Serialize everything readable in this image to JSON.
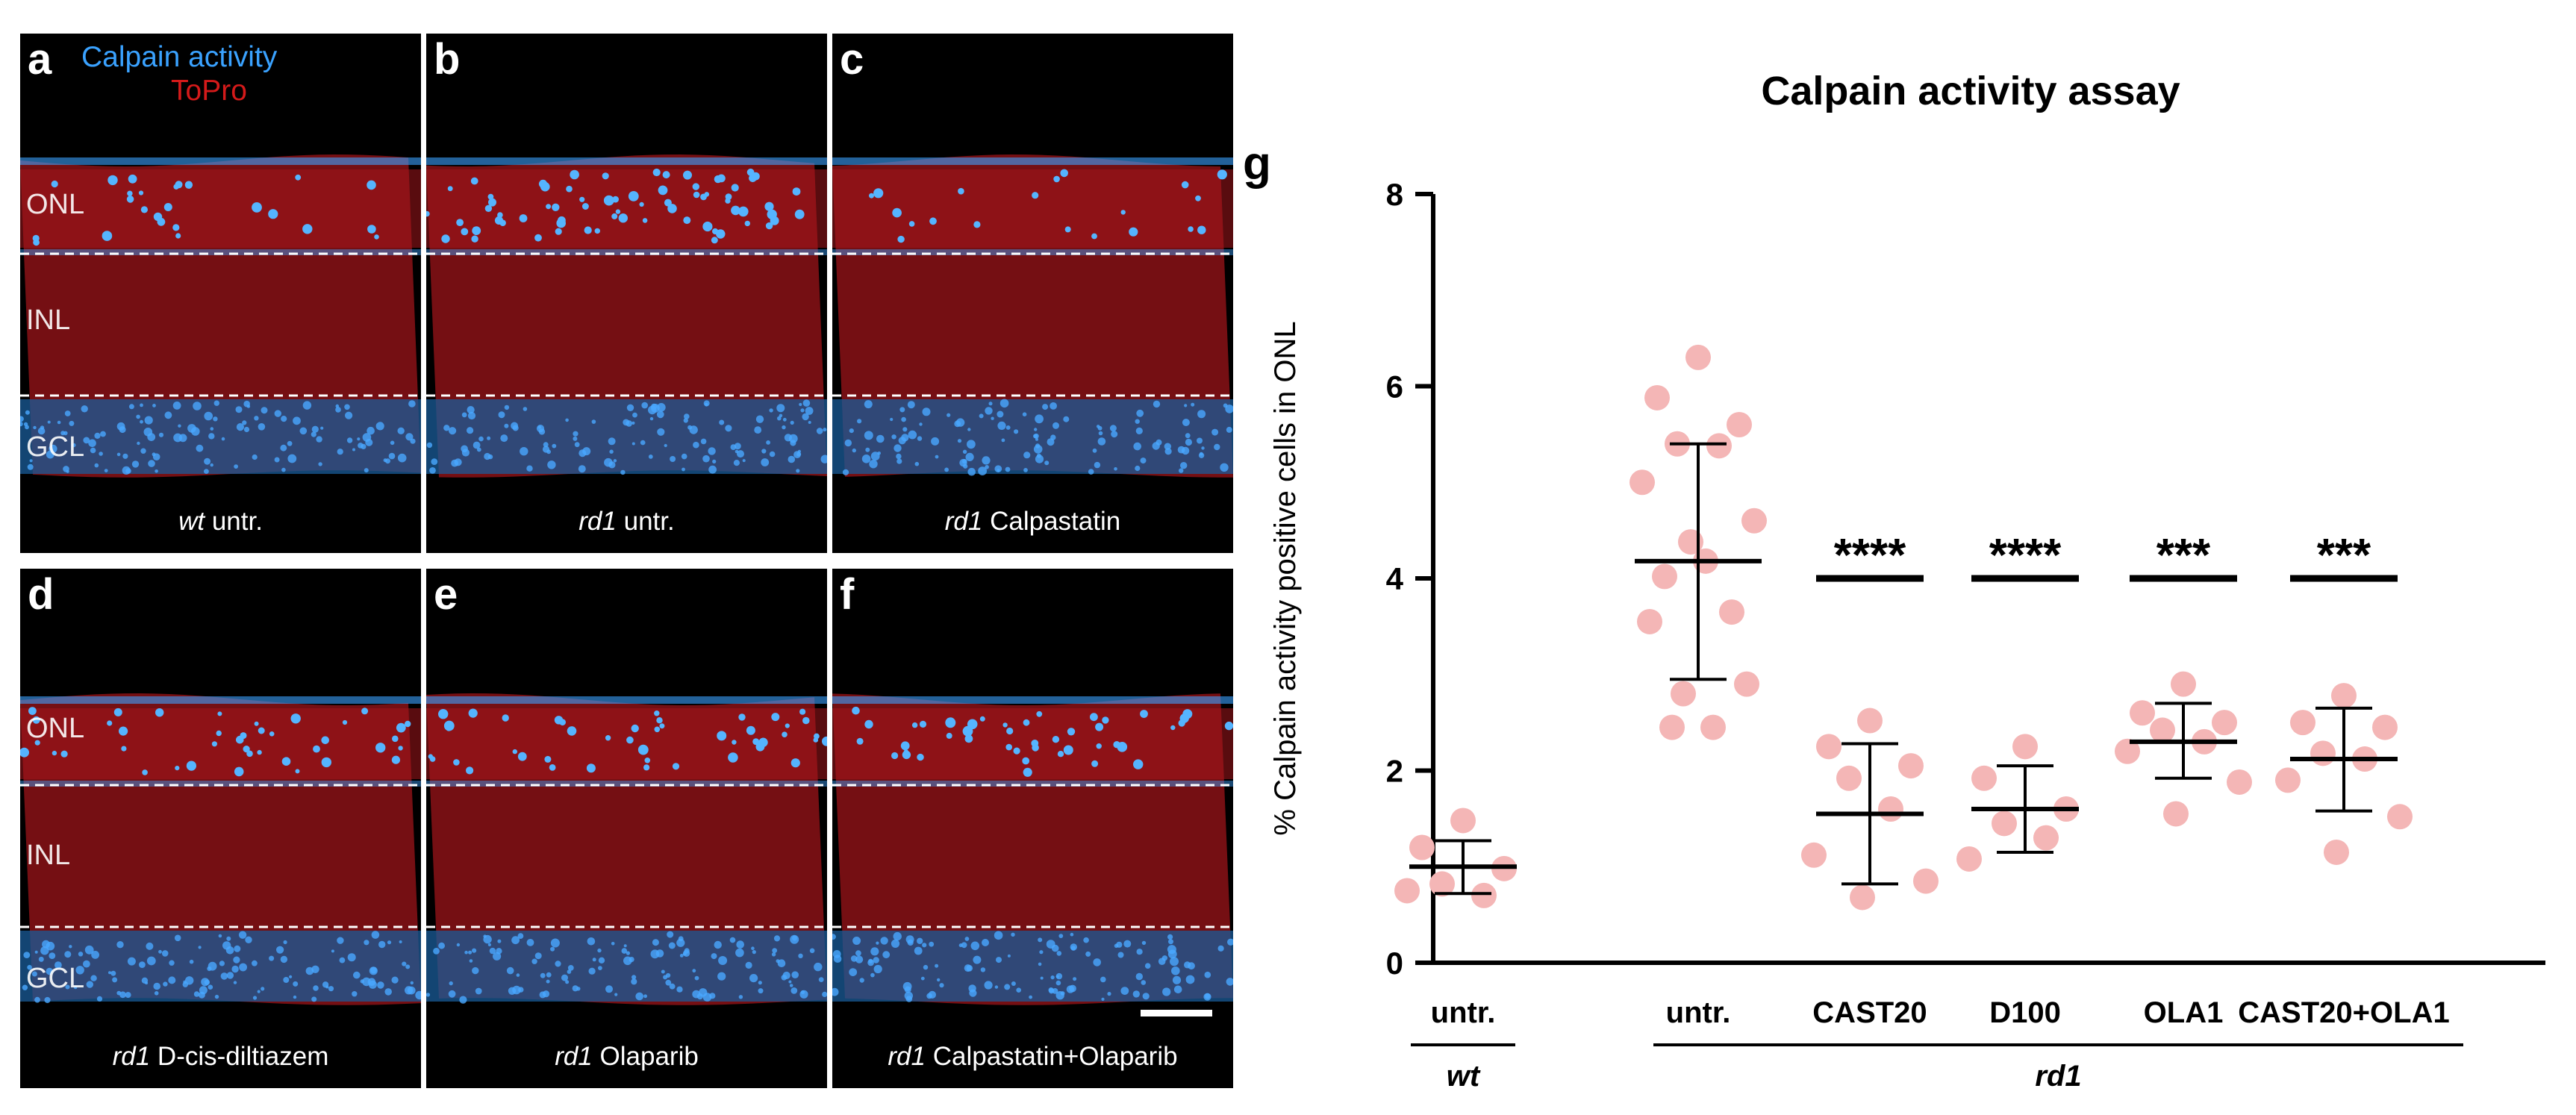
{
  "panels": [
    {
      "letter": "a",
      "genotype": "wt",
      "treatment": "untr."
    },
    {
      "letter": "b",
      "genotype": "rd1",
      "treatment": "untr."
    },
    {
      "letter": "c",
      "genotype": "rd1",
      "treatment": "Calpastatin"
    },
    {
      "letter": "d",
      "genotype": "rd1",
      "treatment": "D-cis-diltiazem"
    },
    {
      "letter": "e",
      "genotype": "rd1",
      "treatment": "Olaparib"
    },
    {
      "letter": "f",
      "genotype": "rd1",
      "treatment": "Calpastatin+Olaparib"
    }
  ],
  "legend": {
    "stain1": "Calpain activity",
    "stain2": "ToPro"
  },
  "layers": {
    "onl": "ONL",
    "inl": "INL",
    "gcl": "GCL"
  },
  "colors": {
    "calpain": "#3aa2ff",
    "topro": "#d41a1a",
    "dots": "#f4b6b6",
    "background": "#000000"
  },
  "chart_data": {
    "panel_letter": "g",
    "type": "scatter",
    "title": "Calpain activity assay",
    "ylabel": "% Calpain activity positive cells in ONL",
    "xlabel": "",
    "ylim": [
      0,
      8
    ],
    "yticks": [
      0,
      2,
      4,
      6,
      8
    ],
    "grid": false,
    "groups": [
      {
        "label": "untr.",
        "points": [
          1.48,
          1.2,
          0.98,
          0.82,
          0.7,
          0.75
        ],
        "mean": 1.0,
        "sd_low": 0.72,
        "sd_high": 1.27,
        "sig": ""
      },
      {
        "label": "untr.",
        "points": [
          6.3,
          5.88,
          5.6,
          5.4,
          5.38,
          5.0,
          4.6,
          4.38,
          4.18,
          4.02,
          3.65,
          3.55,
          2.9,
          2.8,
          2.45,
          2.45
        ],
        "mean": 4.18,
        "sd_low": 2.95,
        "sd_high": 5.4,
        "sig": ""
      },
      {
        "label": "CAST20",
        "points": [
          2.52,
          2.25,
          2.05,
          1.92,
          1.6,
          1.12,
          0.85,
          0.68
        ],
        "mean": 1.55,
        "sd_low": 0.82,
        "sd_high": 2.28,
        "sig": "****"
      },
      {
        "label": "D100",
        "points": [
          2.25,
          1.92,
          1.6,
          1.45,
          1.3,
          1.08
        ],
        "mean": 1.6,
        "sd_low": 1.15,
        "sd_high": 2.05,
        "sig": "****"
      },
      {
        "label": "OLA1",
        "points": [
          2.9,
          2.6,
          2.5,
          2.42,
          2.3,
          2.2,
          1.88,
          1.55
        ],
        "mean": 2.3,
        "sd_low": 1.92,
        "sd_high": 2.7,
        "sig": "***"
      },
      {
        "label": "CAST20+OLA1",
        "points": [
          2.78,
          2.5,
          2.45,
          2.18,
          2.12,
          1.9,
          1.52,
          1.15
        ],
        "mean": 2.12,
        "sd_low": 1.58,
        "sd_high": 2.65,
        "sig": "***"
      }
    ],
    "genotype_labels": [
      {
        "label": "wt",
        "from_group": 0,
        "to_group": 0
      },
      {
        "label": "rd1",
        "from_group": 1,
        "to_group": 5
      }
    ]
  }
}
